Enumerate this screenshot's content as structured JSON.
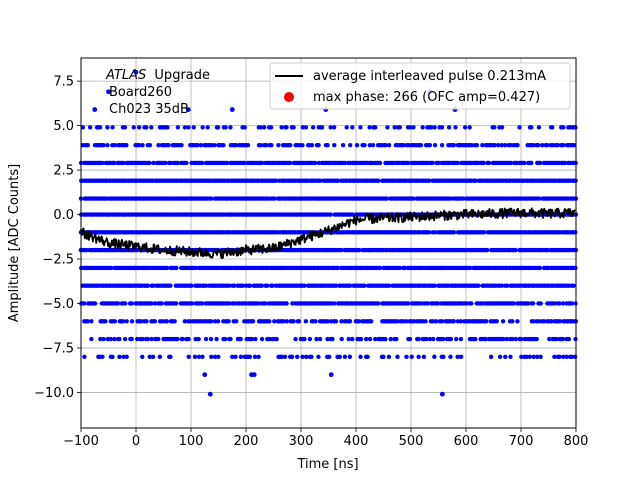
{
  "chart_data": {
    "type": "scatter",
    "xlabel": "Time [ns]",
    "ylabel": "Amplitude [ADC Counts]",
    "xlim": [
      -100,
      800
    ],
    "ylim": [
      -12.0,
      8.8
    ],
    "xticks": [
      -100,
      0,
      100,
      200,
      300,
      400,
      500,
      600,
      700,
      800
    ],
    "xtick_labels": [
      "−100",
      "0",
      "100",
      "200",
      "300",
      "400",
      "500",
      "600",
      "700",
      "800"
    ],
    "yticks": [
      -10.0,
      -7.5,
      -5.0,
      -2.5,
      0.0,
      2.5,
      5.0,
      7.5
    ],
    "ytick_labels": [
      "−10.0",
      "−7.5",
      "−5.0",
      "−2.5",
      "0.0",
      "2.5",
      "5.0",
      "7.5"
    ],
    "grid": true,
    "legend_position": "top-right",
    "annotation": {
      "experiment": "ATLAS",
      "experiment_suffix": "Upgrade",
      "line2": "Board260",
      "line3": "Ch023 35dB"
    },
    "series": [
      {
        "name": "average interleaved pulse 0.213mA",
        "kind": "line",
        "color": "#000000",
        "x": [
          -100,
          -50,
          0,
          50,
          100,
          150,
          200,
          250,
          300,
          350,
          400,
          450,
          500,
          550,
          600,
          650,
          700,
          750,
          800
        ],
        "y": [
          -1.0,
          -1.6,
          -1.8,
          -2.0,
          -2.1,
          -2.2,
          -2.0,
          -1.9,
          -1.4,
          -0.9,
          -0.3,
          -0.2,
          -0.15,
          -0.05,
          0.0,
          0.05,
          0.1,
          0.05,
          0.1
        ]
      },
      {
        "name": "max phase: 266 (OFC amp=0.427)",
        "kind": "scatter",
        "color": "#0000ff",
        "levels": [
          {
            "y": 4.9,
            "density": 0.35
          },
          {
            "y": 3.9,
            "density": 0.55
          },
          {
            "y": 2.9,
            "density": 0.9
          },
          {
            "y": 1.9,
            "density": 0.95
          },
          {
            "y": 0.9,
            "density": 0.97
          },
          {
            "y": 0.0,
            "density": 0.99
          },
          {
            "y": -1.0,
            "density": 0.99
          },
          {
            "y": -2.0,
            "density": 0.97
          },
          {
            "y": -3.0,
            "density": 0.95
          },
          {
            "y": -4.0,
            "density": 0.92
          },
          {
            "y": -5.0,
            "density": 0.85
          },
          {
            "y": -6.0,
            "density": 0.65
          },
          {
            "y": -7.0,
            "density": 0.45
          },
          {
            "y": -8.0,
            "density": 0.28
          }
        ],
        "outliers": [
          {
            "x": 0,
            "y": 8.0
          },
          {
            "x": -50,
            "y": 6.9
          },
          {
            "x": -75,
            "y": 5.9
          },
          {
            "x": 95,
            "y": 5.9
          },
          {
            "x": 175,
            "y": 5.9
          },
          {
            "x": 345,
            "y": 5.9
          },
          {
            "x": 535,
            "y": 6.9
          },
          {
            "x": 580,
            "y": 5.9
          },
          {
            "x": 125,
            "y": -9.0
          },
          {
            "x": 210,
            "y": -9.0
          },
          {
            "x": 215,
            "y": -9.0
          },
          {
            "x": 355,
            "y": -9.0
          },
          {
            "x": 135,
            "y": -10.1
          },
          {
            "x": 557,
            "y": -10.1
          }
        ]
      }
    ]
  }
}
